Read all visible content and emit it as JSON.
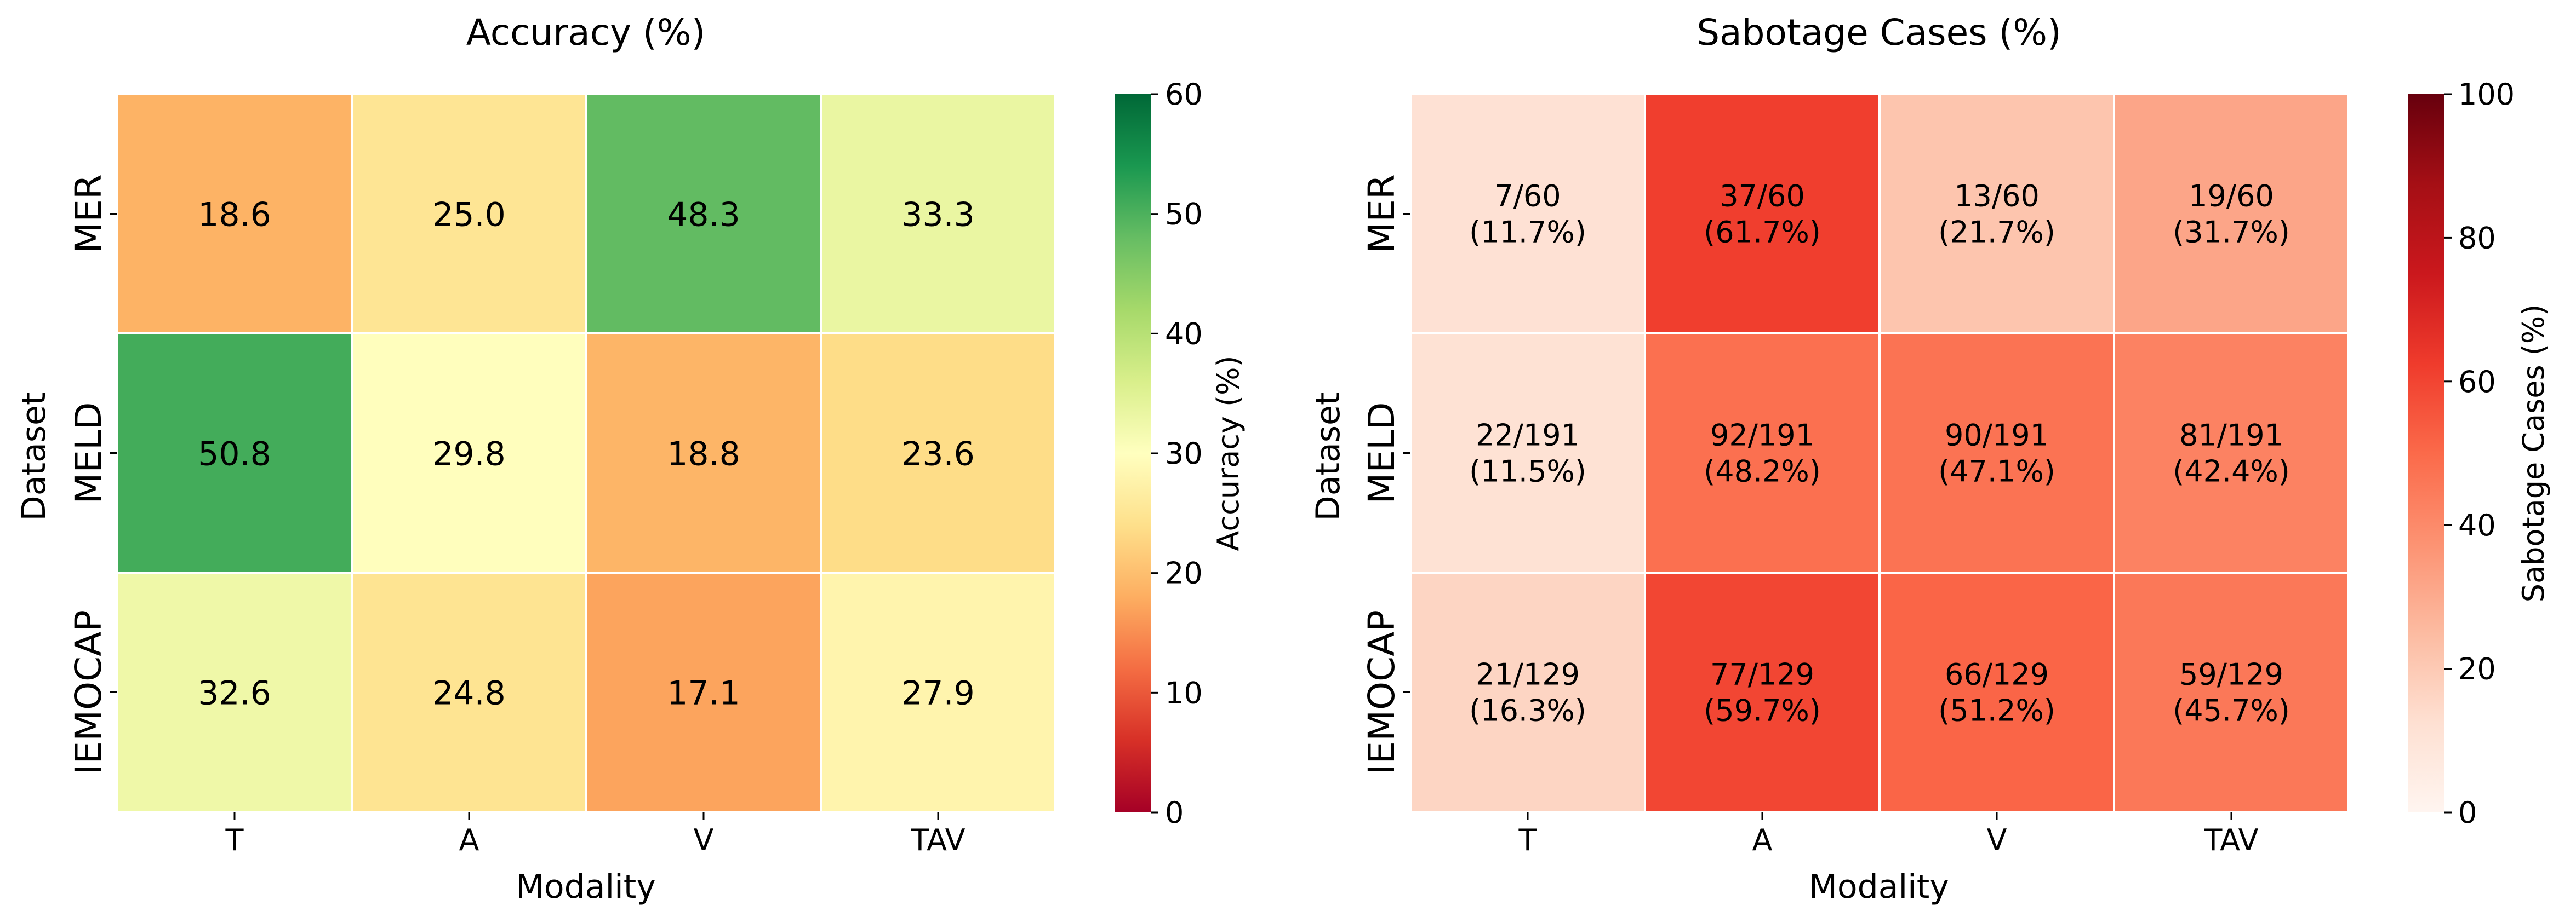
{
  "chart_data": [
    {
      "type": "heatmap",
      "title": "Accuracy (%)",
      "xlabel": "Modality",
      "ylabel": "Dataset",
      "x_categories": [
        "T",
        "A",
        "V",
        "TAV"
      ],
      "y_categories": [
        "MER",
        "MELD",
        "IEMOCAP"
      ],
      "values": [
        [
          18.6,
          25.0,
          48.3,
          33.3
        ],
        [
          50.8,
          29.8,
          18.8,
          23.6
        ],
        [
          32.6,
          24.8,
          17.1,
          27.9
        ]
      ],
      "cell_labels": [
        [
          "18.6",
          "25.0",
          "48.3",
          "33.3"
        ],
        [
          "50.8",
          "29.8",
          "18.8",
          "23.6"
        ],
        [
          "32.6",
          "24.8",
          "17.1",
          "27.9"
        ]
      ],
      "colormap": "RdYlGn",
      "vmin": 0,
      "vmax": 60,
      "colorbar_label": "Accuracy (%)",
      "colorbar_ticks": [
        "0",
        "10",
        "20",
        "30",
        "40",
        "50",
        "60"
      ]
    },
    {
      "type": "heatmap",
      "title": "Sabotage Cases (%)",
      "xlabel": "Modality",
      "ylabel": "Dataset",
      "x_categories": [
        "T",
        "A",
        "V",
        "TAV"
      ],
      "y_categories": [
        "MER",
        "MELD",
        "IEMOCAP"
      ],
      "values": [
        [
          11.7,
          61.7,
          21.7,
          31.7
        ],
        [
          11.5,
          48.2,
          47.1,
          42.4
        ],
        [
          16.3,
          59.7,
          51.2,
          45.7
        ]
      ],
      "cell_labels": [
        [
          [
            "7/60",
            "(11.7%)"
          ],
          [
            "37/60",
            "(61.7%)"
          ],
          [
            "13/60",
            "(21.7%)"
          ],
          [
            "19/60",
            "(31.7%)"
          ]
        ],
        [
          [
            "22/191",
            "(11.5%)"
          ],
          [
            "92/191",
            "(48.2%)"
          ],
          [
            "90/191",
            "(47.1%)"
          ],
          [
            "81/191",
            "(42.4%)"
          ]
        ],
        [
          [
            "21/129",
            "(16.3%)"
          ],
          [
            "77/129",
            "(59.7%)"
          ],
          [
            "66/129",
            "(51.2%)"
          ],
          [
            "59/129",
            "(45.7%)"
          ]
        ]
      ],
      "colormap": "Reds",
      "vmin": 0,
      "vmax": 100,
      "colorbar_label": "Sabotage Cases (%)",
      "colorbar_ticks": [
        "0",
        "20",
        "40",
        "60",
        "80",
        "100"
      ]
    }
  ]
}
